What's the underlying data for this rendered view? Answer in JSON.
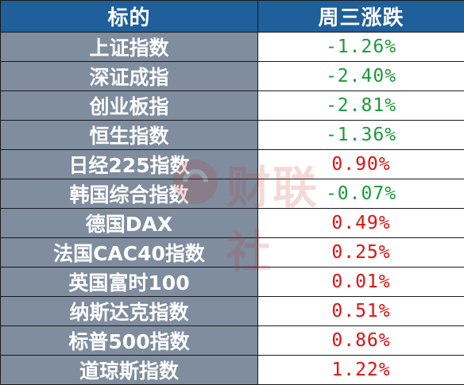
{
  "table": {
    "headers": [
      "标的",
      "周三涨跌"
    ],
    "rows": [
      {
        "name": "上证指数",
        "change": "-1.26%",
        "color": "#1a9a3a"
      },
      {
        "name": "深证成指",
        "change": "-2.40%",
        "color": "#1a9a3a"
      },
      {
        "name": "创业板指",
        "change": "-2.81%",
        "color": "#1a9a3a"
      },
      {
        "name": "恒生指数",
        "change": "-1.36%",
        "color": "#1a9a3a"
      },
      {
        "name": "日经225指数",
        "change": "0.90%",
        "color": "#e01010"
      },
      {
        "name": "韩国综合指数",
        "change": "-0.07%",
        "color": "#1a9a3a"
      },
      {
        "name": "德国DAX",
        "change": "0.49%",
        "color": "#e01010"
      },
      {
        "name": "法国CAC40指数",
        "change": "0.25%",
        "color": "#e01010"
      },
      {
        "name": "英国富时100",
        "change": "0.01%",
        "color": "#e01010"
      },
      {
        "name": "纳斯达克指数",
        "change": "0.51%",
        "color": "#e01010"
      },
      {
        "name": "标普500指数",
        "change": "0.86%",
        "color": "#e01010"
      },
      {
        "name": "道琼斯指数",
        "change": "1.22%",
        "color": "#e01010"
      }
    ]
  },
  "colors": {
    "header_bg": "#1f5f9a",
    "name_bg": "#7f8d9f",
    "negative": "#1a9a3a",
    "positive": "#e01010"
  },
  "watermark": {
    "text": "财联社",
    "icon": "cailianshe-logo-icon"
  }
}
